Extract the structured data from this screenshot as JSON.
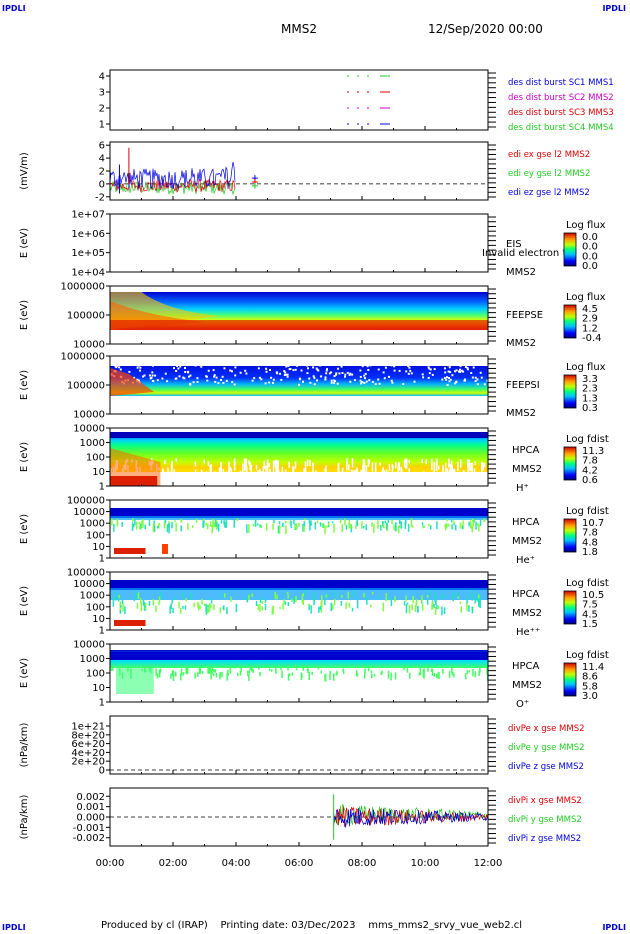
{
  "header": {
    "mission": "MMS2",
    "date": "12/Sep/2020 00:00",
    "corner_tl": "IPDLI",
    "corner_tr": "IPDLI",
    "corner_bl": "IPDLI",
    "corner_br": "IPDLI"
  },
  "footer": {
    "produced_by": "Produced by cl (IRAP)",
    "printing_date": "Printing date: 03/Dec/2023",
    "filename": "mms_mms2_srvy_vue_web2.cl"
  },
  "colors": {
    "red": "#dd0000",
    "green": "#22cc22",
    "blue": "#0000dd",
    "magenta": "#cc00cc"
  },
  "chart_data": [
    {
      "id": "burst",
      "type": "line",
      "ylim": [
        0.5,
        4.5
      ],
      "yticks": [
        "1",
        "2",
        "3",
        "4"
      ],
      "xlabel": "",
      "ylabel": "",
      "legend": [
        {
          "text": "des dist burst SC1 MMS1",
          "color": "#0000dd"
        },
        {
          "text": "des dist burst SC2 MMS2",
          "color": "#cc00cc"
        },
        {
          "text": "des dist burst SC3 MMS3",
          "color": "#dd0000"
        },
        {
          "text": "des dist burst SC4 MMS4",
          "color": "#22cc22"
        }
      ]
    },
    {
      "id": "efield",
      "type": "line",
      "ylim": [
        -2.5,
        6.5
      ],
      "yticks": [
        "6",
        "4",
        "2",
        "0",
        "-2"
      ],
      "ylabel": "(mV/m)",
      "legend": [
        {
          "text": "edi ex gse l2 MMS2",
          "color": "#dd0000"
        },
        {
          "text": "edi ey gse l2 MMS2",
          "color": "#22cc22"
        },
        {
          "text": "edi ez gse l2 MMS2",
          "color": "#0000dd"
        }
      ]
    },
    {
      "id": "eis",
      "type": "heatmap",
      "yticks": [
        "1e+07",
        "1e+06",
        "1e+05",
        "1e+04"
      ],
      "ylabel": "E (eV)",
      "name": [
        "EIS",
        "MMS2"
      ],
      "overlay": "Invalid electron to",
      "cbar_title": "Log flux",
      "cbar_ticks": [
        "0.0",
        "0.0",
        "0.0",
        "0.0"
      ]
    },
    {
      "id": "feepse",
      "type": "heatmap",
      "yticks": [
        "1000000",
        "100000",
        "10000"
      ],
      "ylabel": "E (eV)",
      "name": [
        "FEEPSE",
        "MMS2"
      ],
      "cbar_title": "Log flux",
      "cbar_ticks": [
        "4.5",
        "2.9",
        "1.2",
        "-0.4"
      ]
    },
    {
      "id": "feepsi",
      "type": "heatmap",
      "yticks": [
        "1000000",
        "100000",
        "10000"
      ],
      "ylabel": "E (eV)",
      "name": [
        "FEEPSI",
        "MMS2"
      ],
      "cbar_title": "Log flux",
      "cbar_ticks": [
        "3.3",
        "2.3",
        "1.3",
        "0.3"
      ]
    },
    {
      "id": "hpca_h",
      "type": "heatmap",
      "yticks": [
        "10000",
        "1000",
        "100",
        "10",
        "1"
      ],
      "ylabel": "E (eV)",
      "name": [
        "HPCA",
        "MMS2",
        "H⁺"
      ],
      "cbar_title": "Log fdist",
      "cbar_ticks": [
        "11.3",
        "7.8",
        "4.2",
        "0.6"
      ]
    },
    {
      "id": "hpca_he",
      "type": "heatmap",
      "yticks": [
        "100000",
        "10000",
        "1000",
        "100",
        "10",
        "1"
      ],
      "ylabel": "E (eV)",
      "name": [
        "HPCA",
        "MMS2",
        "He⁺"
      ],
      "cbar_title": "Log fdist",
      "cbar_ticks": [
        "10.7",
        "7.8",
        "4.8",
        "1.8"
      ]
    },
    {
      "id": "hpca_hepp",
      "type": "heatmap",
      "yticks": [
        "100000",
        "10000",
        "1000",
        "100",
        "10",
        "1"
      ],
      "ylabel": "E (eV)",
      "name": [
        "HPCA",
        "MMS2",
        "He⁺⁺"
      ],
      "cbar_title": "Log fdist",
      "cbar_ticks": [
        "10.5",
        "7.5",
        "4.5",
        "1.5"
      ]
    },
    {
      "id": "hpca_o",
      "type": "heatmap",
      "yticks": [
        "10000",
        "1000",
        "100",
        "10",
        "1"
      ],
      "ylabel": "E (eV)",
      "name": [
        "HPCA",
        "MMS2",
        "O⁺"
      ],
      "cbar_title": "Log fdist",
      "cbar_ticks": [
        "11.4",
        "8.6",
        "5.8",
        "3.0"
      ]
    },
    {
      "id": "divpe",
      "type": "line",
      "yticks": [
        "1e+21",
        "8e+20",
        "6e+20",
        "4e+20",
        "2e+20",
        "0"
      ],
      "ylabel": "(nPa/km)",
      "legend": [
        {
          "text": "divPe x gse MMS2",
          "color": "#dd0000"
        },
        {
          "text": "divPe y gse MMS2",
          "color": "#22cc22"
        },
        {
          "text": "divPe z gse MMS2",
          "color": "#0000dd"
        }
      ]
    },
    {
      "id": "divpi",
      "type": "line",
      "ylim": [
        -0.0028,
        0.0028
      ],
      "yticks": [
        "0.002",
        "0.001",
        "0.000",
        "-0.001",
        "-0.002"
      ],
      "ylabel": "(nPa/km)",
      "legend": [
        {
          "text": "divPi x gse MMS2",
          "color": "#dd0000"
        },
        {
          "text": "divPi y gse MMS2",
          "color": "#22cc22"
        },
        {
          "text": "divPi z gse MMS2",
          "color": "#0000dd"
        }
      ]
    }
  ],
  "time_axis": {
    "ticks": [
      "00:00",
      "02:00",
      "04:00",
      "06:00",
      "08:00",
      "10:00",
      "12:00"
    ]
  }
}
